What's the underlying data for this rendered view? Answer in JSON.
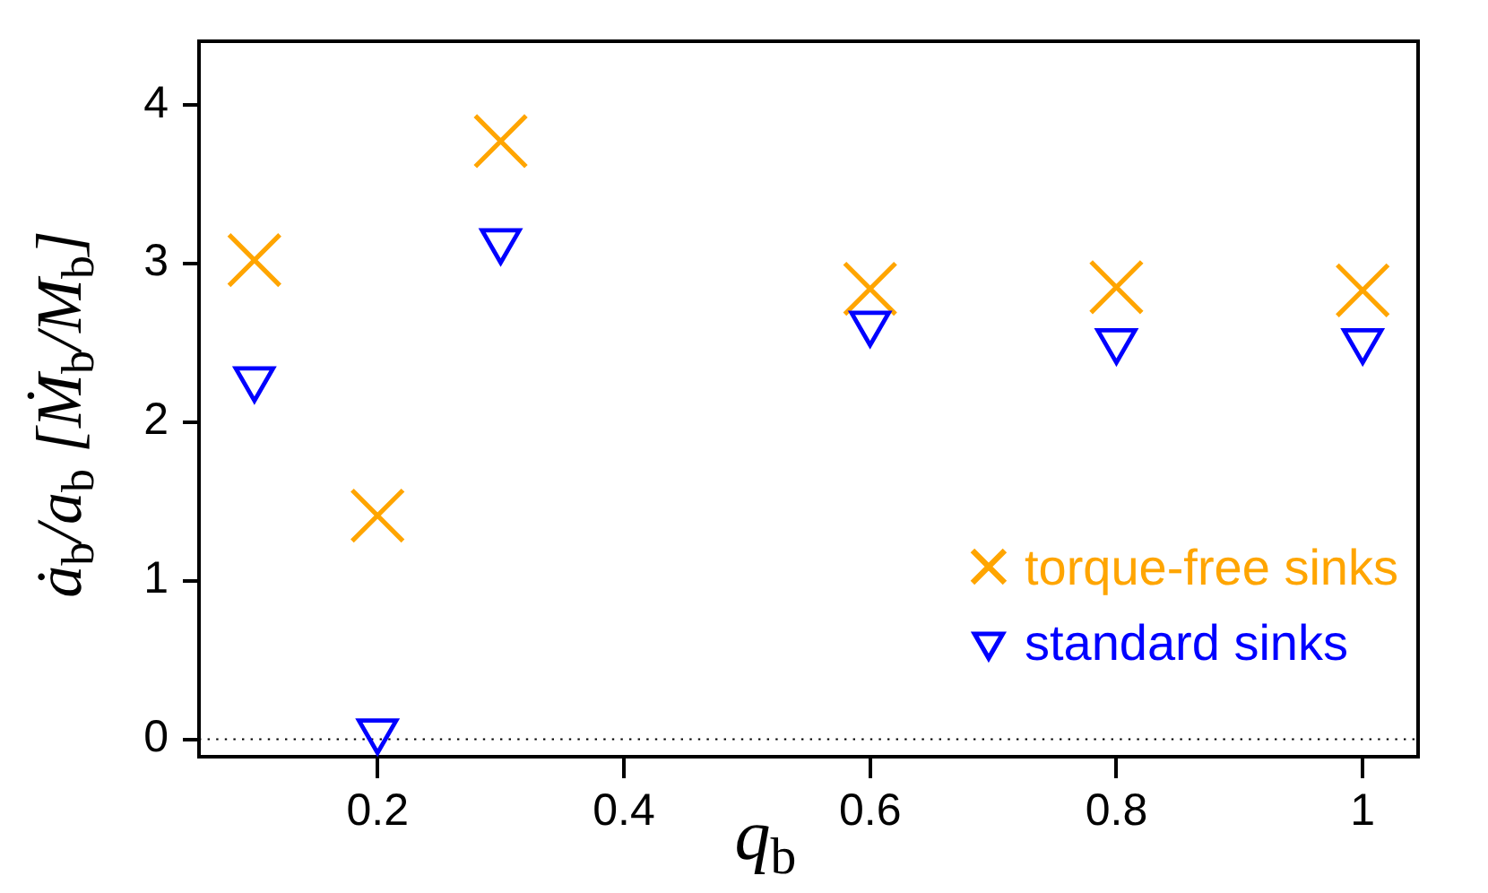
{
  "chart_data": {
    "type": "scatter",
    "xlabel": "q$_{b}$",
    "ylabel": "ȧ$_{b}$/a$_{b}$ [Ṁ$_{b}$/M$_{b}$]",
    "x": [
      0.1,
      0.2,
      0.3,
      0.6,
      0.8,
      1
    ],
    "xlim": [
      0.055,
      1.045
    ],
    "xticks": [
      0.2,
      0.4,
      0.6,
      0.8,
      1
    ],
    "ylim": [
      -0.11,
      4.4
    ],
    "yticks": [
      0,
      1,
      2,
      3,
      4
    ],
    "series": [
      {
        "name": "torque-free sinks",
        "color": "#ffa500",
        "marker": "cross",
        "values": [
          3.02,
          1.41,
          3.77,
          2.84,
          2.85,
          2.83
        ]
      },
      {
        "name": "standard sinks",
        "color": "#0000ff",
        "marker": "triangle",
        "values": [
          2.27,
          0.05,
          3.14,
          2.62,
          2.51,
          2.51
        ]
      }
    ],
    "ref_lines": [
      {
        "axis": "y",
        "value": 0,
        "line_style": "dotted",
        "color": "#000000"
      }
    ],
    "legend": "bottom right"
  }
}
